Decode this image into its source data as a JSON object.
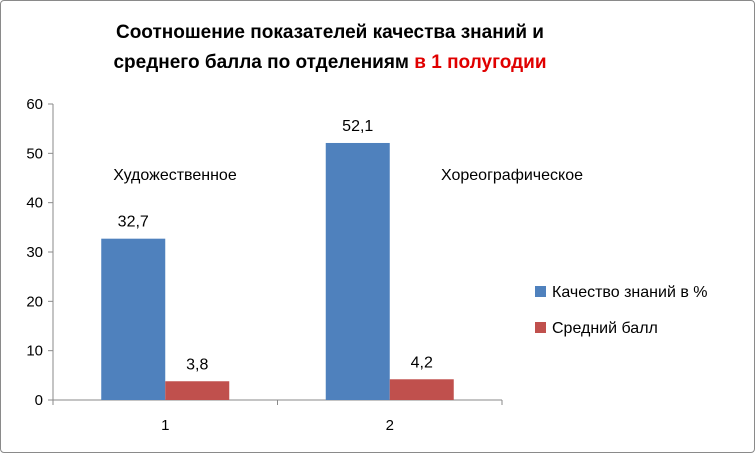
{
  "chart_data": {
    "type": "bar",
    "title_line1": "Соотношение показателей качества знаний и",
    "title_line2_main": "среднего балла по отделениям",
    "title_line2_highlight": "в 1 полугодии",
    "categories": [
      "1",
      "2"
    ],
    "series": [
      {
        "name": "Качество знаний в %",
        "values": [
          32.7,
          52.1
        ],
        "labels": [
          "32,7",
          "52,1"
        ],
        "color": "#4f81bd"
      },
      {
        "name": "Средний балл",
        "values": [
          3.8,
          4.2
        ],
        "labels": [
          "3,8",
          "4,2"
        ],
        "color": "#c0504d"
      }
    ],
    "annotations": [
      "Художественное",
      "Хореографическое"
    ],
    "ylim": [
      0,
      60
    ],
    "yticks": [
      0,
      10,
      20,
      30,
      40,
      50,
      60
    ],
    "grid": false,
    "legend": "right"
  }
}
